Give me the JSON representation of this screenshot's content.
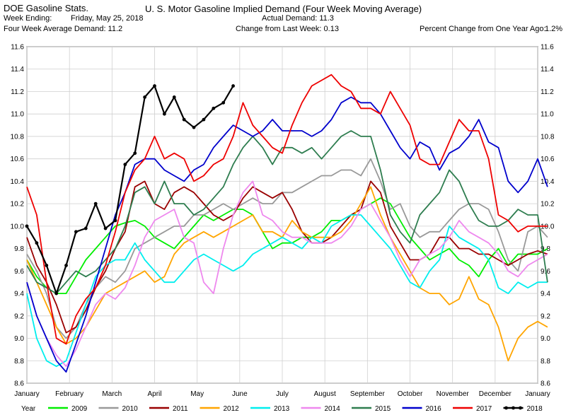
{
  "header": {
    "left_title": "DOE Gasoline Stats.",
    "week_ending_label": "Week Ending:",
    "week_ending_value": "Friday, May 25, 2018",
    "four_week_label": "Four Week Average Demand: 11.2",
    "main_title": "U. S. Motor Gasoline Implied Demand (Four Week Moving Average)",
    "actual_demand": "Actual Demand: 11.3",
    "change_last_week": "Change from Last Week: 0.13",
    "pct_change_label": "Percent Change from One Year Ago:",
    "pct_change_value": "1.2%"
  },
  "chart_data": {
    "type": "line",
    "title": "U. S. Motor Gasoline Implied Demand (Four Week Moving Average)",
    "ylim": [
      8.6,
      11.6
    ],
    "yticks": [
      "11.6",
      "11.4",
      "11.2",
      "11.0",
      "10.8",
      "10.6",
      "10.4",
      "10.2",
      "10.0",
      "9.8",
      "9.6",
      "9.4",
      "9.2",
      "9.0",
      "8.8",
      "8.6"
    ],
    "xlim": [
      1,
      53
    ],
    "month_labels": [
      "January",
      "February",
      "March",
      "April",
      "May",
      "June",
      "July",
      "August",
      "September",
      "October",
      "November",
      "December",
      "January"
    ],
    "legend_title": "Year",
    "grid": true,
    "series": [
      {
        "name": "2009",
        "color": "#00ee00",
        "values": [
          9.7,
          9.55,
          9.45,
          9.4,
          9.4,
          9.55,
          9.7,
          9.8,
          9.9,
          10.0,
          10.03,
          10.05,
          10.0,
          9.9,
          9.85,
          9.8,
          9.9,
          10.0,
          10.1,
          10.05,
          10.1,
          10.15,
          10.15,
          10.1,
          9.95,
          9.8,
          9.85,
          9.85,
          9.9,
          9.9,
          9.95,
          10.05,
          10.05,
          10.1,
          10.15,
          10.2,
          10.25,
          10.2,
          10.05,
          9.9,
          9.8,
          9.7,
          9.75,
          9.8,
          9.7,
          9.65,
          9.55,
          9.7,
          9.8,
          9.65,
          9.75,
          9.75,
          9.75,
          9.8
        ]
      },
      {
        "name": "2010",
        "color": "#999999",
        "values": [
          9.75,
          9.6,
          9.4,
          9.1,
          9.0,
          9.1,
          9.3,
          9.45,
          9.55,
          9.5,
          9.6,
          9.8,
          9.85,
          9.9,
          9.95,
          10.0,
          10.0,
          10.1,
          10.1,
          10.15,
          10.2,
          10.15,
          10.2,
          10.25,
          10.2,
          10.2,
          10.3,
          10.3,
          10.35,
          10.4,
          10.45,
          10.45,
          10.5,
          10.5,
          10.45,
          10.6,
          10.4,
          10.15,
          10.2,
          10.0,
          9.9,
          9.95,
          9.95,
          10.05,
          10.15,
          10.2,
          10.2,
          10.15,
          9.95,
          9.7,
          9.6,
          9.95,
          10.0,
          9.9
        ]
      },
      {
        "name": "2011",
        "color": "#990000",
        "values": [
          9.9,
          9.65,
          9.5,
          9.3,
          9.05,
          9.1,
          9.25,
          9.45,
          9.6,
          9.8,
          9.95,
          10.35,
          10.4,
          10.2,
          10.15,
          10.3,
          10.35,
          10.3,
          10.2,
          10.1,
          10.05,
          10.1,
          10.25,
          10.35,
          10.3,
          10.25,
          10.3,
          10.15,
          9.95,
          9.85,
          9.85,
          9.9,
          10.0,
          10.1,
          10.15,
          10.4,
          10.3,
          10.0,
          9.85,
          9.7,
          9.7,
          9.75,
          9.9,
          9.9,
          9.8,
          9.8,
          9.75,
          9.75,
          9.7,
          9.65,
          9.7,
          9.75,
          9.78,
          9.75
        ]
      },
      {
        "name": "2012",
        "color": "#ffa500",
        "values": [
          9.7,
          9.5,
          9.3,
          9.1,
          8.95,
          9.0,
          9.1,
          9.25,
          9.4,
          9.45,
          9.5,
          9.55,
          9.6,
          9.5,
          9.55,
          9.75,
          9.85,
          9.9,
          9.95,
          9.9,
          9.95,
          10.0,
          10.05,
          10.1,
          9.95,
          9.95,
          9.9,
          10.05,
          9.95,
          9.9,
          9.9,
          9.9,
          9.95,
          10.05,
          10.2,
          10.35,
          10.1,
          9.9,
          9.75,
          9.6,
          9.45,
          9.4,
          9.4,
          9.3,
          9.35,
          9.55,
          9.35,
          9.3,
          9.1,
          8.8,
          9.0,
          9.1,
          9.15,
          9.1
        ]
      },
      {
        "name": "2013",
        "color": "#00eeee",
        "values": [
          9.4,
          9.0,
          8.8,
          8.75,
          8.8,
          9.05,
          9.3,
          9.55,
          9.65,
          9.7,
          9.7,
          9.85,
          9.7,
          9.6,
          9.5,
          9.5,
          9.6,
          9.7,
          9.75,
          9.7,
          9.65,
          9.6,
          9.65,
          9.75,
          9.8,
          9.85,
          9.9,
          9.85,
          9.8,
          9.9,
          9.85,
          10.0,
          10.05,
          10.1,
          10.1,
          10.0,
          9.9,
          9.8,
          9.65,
          9.5,
          9.45,
          9.6,
          9.7,
          10.0,
          9.9,
          9.85,
          9.8,
          9.7,
          9.45,
          9.4,
          9.5,
          9.45,
          9.5,
          9.5
        ]
      },
      {
        "name": "2014",
        "color": "#ee88ee",
        "values": [
          9.5,
          9.2,
          9.0,
          8.85,
          8.75,
          8.9,
          9.1,
          9.3,
          9.4,
          9.35,
          9.45,
          9.65,
          9.9,
          10.05,
          10.1,
          10.15,
          9.9,
          9.85,
          9.5,
          9.4,
          9.8,
          10.1,
          10.3,
          10.4,
          10.1,
          10.05,
          9.95,
          9.9,
          9.9,
          9.85,
          9.85,
          9.85,
          9.9,
          10.0,
          10.15,
          10.2,
          10.05,
          9.9,
          9.7,
          9.55,
          9.7,
          9.75,
          9.8,
          9.9,
          10.05,
          9.95,
          9.9,
          9.85,
          9.75,
          9.6,
          9.55,
          9.65,
          9.7,
          9.75
        ]
      },
      {
        "name": "2015",
        "color": "#2e7d4f",
        "values": [
          9.65,
          9.5,
          9.45,
          9.4,
          9.5,
          9.6,
          9.55,
          9.6,
          9.7,
          9.8,
          10.0,
          10.3,
          10.35,
          10.2,
          10.4,
          10.2,
          10.2,
          10.1,
          10.15,
          10.25,
          10.35,
          10.55,
          10.7,
          10.8,
          10.7,
          10.55,
          10.7,
          10.7,
          10.65,
          10.7,
          10.6,
          10.7,
          10.8,
          10.85,
          10.8,
          10.8,
          10.5,
          10.1,
          9.95,
          9.85,
          10.1,
          10.2,
          10.3,
          10.5,
          10.4,
          10.2,
          10.05,
          10.0,
          10.0,
          10.05,
          10.15,
          10.1,
          10.1,
          9.5
        ]
      },
      {
        "name": "2016",
        "color": "#0000cc",
        "values": [
          9.5,
          9.2,
          9.0,
          8.8,
          8.7,
          8.95,
          9.2,
          9.5,
          9.8,
          10.1,
          10.3,
          10.55,
          10.6,
          10.6,
          10.5,
          10.45,
          10.4,
          10.5,
          10.55,
          10.7,
          10.8,
          10.9,
          10.85,
          10.8,
          10.85,
          10.95,
          10.85,
          10.85,
          10.85,
          10.8,
          10.85,
          10.95,
          11.1,
          11.15,
          11.1,
          11.1,
          11.0,
          10.85,
          10.7,
          10.6,
          10.75,
          10.7,
          10.5,
          10.65,
          10.7,
          10.8,
          10.95,
          10.75,
          10.7,
          10.4,
          10.3,
          10.4,
          10.6,
          10.35
        ]
      },
      {
        "name": "2017",
        "color": "#ee0000",
        "values": [
          10.35,
          10.1,
          9.5,
          9.0,
          8.95,
          9.2,
          9.35,
          9.45,
          9.65,
          9.95,
          10.3,
          10.5,
          10.6,
          10.8,
          10.6,
          10.65,
          10.6,
          10.4,
          10.45,
          10.55,
          10.6,
          10.8,
          11.1,
          10.9,
          10.8,
          10.7,
          10.65,
          10.9,
          11.1,
          11.25,
          11.3,
          11.35,
          11.25,
          11.2,
          11.05,
          11.05,
          11.0,
          11.2,
          11.05,
          10.9,
          10.6,
          10.55,
          10.55,
          10.75,
          10.95,
          10.85,
          10.85,
          10.6,
          10.1,
          10.05,
          9.95,
          10.0,
          10.0,
          10.0
        ]
      },
      {
        "name": "2018",
        "color": "#000000",
        "values": [
          10.0,
          9.85,
          9.65,
          9.4,
          9.65,
          9.95,
          9.98,
          10.2,
          9.98,
          10.05,
          10.55,
          10.65,
          11.15,
          11.25,
          11.0,
          11.15,
          10.95,
          10.88,
          10.95,
          11.05,
          11.1,
          11.25
        ]
      }
    ]
  }
}
